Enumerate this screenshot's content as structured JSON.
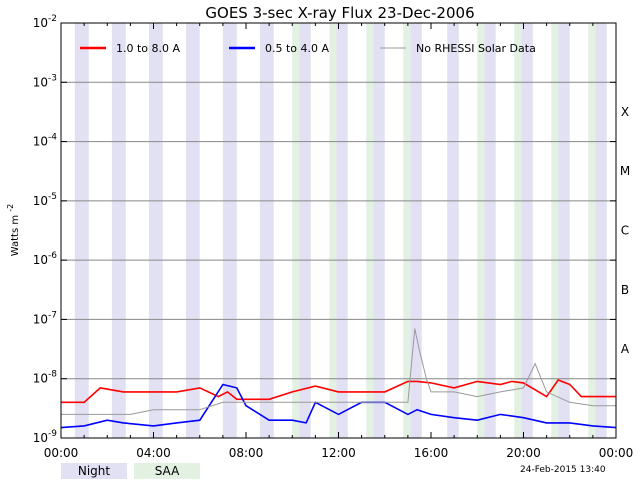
{
  "chart_data": {
    "type": "line",
    "title": "GOES 3-sec X-ray Flux   23-Dec-2006",
    "ylabel": "Watts m",
    "ylabel_superscript": "-2",
    "yscale": "log",
    "ylim": [
      1e-09,
      0.01
    ],
    "y_ticks": [
      {
        "mantissa": "10",
        "exponent": "-9",
        "value": 1e-09
      },
      {
        "mantissa": "10",
        "exponent": "-8",
        "value": 1e-08
      },
      {
        "mantissa": "10",
        "exponent": "-7",
        "value": 1e-07
      },
      {
        "mantissa": "10",
        "exponent": "-6",
        "value": 1e-06
      },
      {
        "mantissa": "10",
        "exponent": "-5",
        "value": 1e-05
      },
      {
        "mantissa": "10",
        "exponent": "-4",
        "value": 0.0001
      },
      {
        "mantissa": "10",
        "exponent": "-3",
        "value": 0.001
      },
      {
        "mantissa": "10",
        "exponent": "-2",
        "value": 0.01
      }
    ],
    "xlim": [
      "00:00",
      "24:00"
    ],
    "x_ticks": [
      {
        "label": "00:00",
        "hour": 0
      },
      {
        "label": "04:00",
        "hour": 4
      },
      {
        "label": "08:00",
        "hour": 8
      },
      {
        "label": "12:00",
        "hour": 12
      },
      {
        "label": "16:00",
        "hour": 16
      },
      {
        "label": "20:00",
        "hour": 20
      },
      {
        "label": "00:00",
        "hour": 24
      }
    ],
    "flare_classes": [
      {
        "label": "A",
        "value": 1e-08
      },
      {
        "label": "B",
        "value": 1e-07
      },
      {
        "label": "C",
        "value": 1e-06
      },
      {
        "label": "M",
        "value": 1e-05
      },
      {
        "label": "X",
        "value": 0.0001
      }
    ],
    "grid": true,
    "legend_position": "top",
    "night_bands_hours": [
      [
        0.6,
        1.2
      ],
      [
        2.2,
        2.8
      ],
      [
        3.8,
        4.4
      ],
      [
        5.4,
        6.0
      ],
      [
        7.0,
        7.6
      ],
      [
        8.6,
        9.2
      ],
      [
        10.3,
        10.8
      ],
      [
        11.9,
        12.4
      ],
      [
        13.5,
        14.0
      ],
      [
        15.1,
        15.6
      ],
      [
        16.7,
        17.2
      ],
      [
        18.3,
        18.8
      ],
      [
        19.9,
        20.4
      ],
      [
        21.5,
        22.0
      ],
      [
        23.1,
        23.6
      ]
    ],
    "saa_bands_hours": [
      [
        10.0,
        10.3
      ],
      [
        11.6,
        11.9
      ],
      [
        13.2,
        13.5
      ],
      [
        14.8,
        15.1
      ],
      [
        18.0,
        18.3
      ],
      [
        19.6,
        19.9
      ],
      [
        21.2,
        21.5
      ],
      [
        22.8,
        23.1
      ],
      [
        24.0,
        24.1
      ]
    ],
    "series": [
      {
        "name": "1.0 to 8.0 A",
        "color": "#ff0000",
        "x": [
          0,
          1,
          1.7,
          2.7,
          4.0,
          5.0,
          6.0,
          6.8,
          7.2,
          7.6,
          8.2,
          9.0,
          10.0,
          11.0,
          12.0,
          13.0,
          14.0,
          15.0,
          15.4,
          16.0,
          17.0,
          18.0,
          19.0,
          19.5,
          20.0,
          21.0,
          21.5,
          22.0,
          22.5,
          23.0,
          24.0
        ],
        "y": [
          4e-09,
          4e-09,
          7e-09,
          6e-09,
          6e-09,
          6e-09,
          7e-09,
          5e-09,
          6e-09,
          4.5e-09,
          4.5e-09,
          4.5e-09,
          6e-09,
          7.5e-09,
          6e-09,
          6e-09,
          6e-09,
          9e-09,
          9e-09,
          8.5e-09,
          7e-09,
          9e-09,
          8e-09,
          9e-09,
          8.5e-09,
          5e-09,
          9.5e-09,
          8e-09,
          5e-09,
          5e-09,
          5e-09
        ]
      },
      {
        "name": "0.5 to 4.0 A",
        "color": "#0000ff",
        "x": [
          0,
          1.0,
          2.0,
          2.7,
          4.0,
          5.0,
          6.0,
          7.0,
          7.6,
          8.0,
          9.0,
          10.0,
          10.6,
          11.0,
          12.0,
          13.0,
          14.0,
          15.0,
          15.4,
          16.0,
          17.0,
          18.0,
          19.0,
          20.0,
          21.0,
          22.0,
          23.0,
          24.0
        ],
        "y": [
          1.5e-09,
          1.6e-09,
          2e-09,
          1.8e-09,
          1.6e-09,
          1.8e-09,
          2e-09,
          8e-09,
          7e-09,
          3.5e-09,
          2e-09,
          2e-09,
          1.8e-09,
          4e-09,
          2.5e-09,
          4e-09,
          4e-09,
          2.5e-09,
          3e-09,
          2.5e-09,
          2.2e-09,
          2e-09,
          2.5e-09,
          2.2e-09,
          1.8e-09,
          1.8e-09,
          1.6e-09,
          1.5e-09
        ]
      },
      {
        "name": "No RHESSI Solar Data",
        "color": "#999999",
        "x": [
          0,
          1,
          2,
          3,
          4,
          5,
          6,
          7,
          8,
          9,
          10,
          11,
          12,
          13,
          14,
          15,
          15.3,
          15.5,
          15.8,
          16,
          17,
          18,
          19,
          20,
          20.5,
          21,
          22,
          23,
          24
        ],
        "y": [
          2.5e-09,
          2.5e-09,
          2.5e-09,
          2.5e-09,
          3e-09,
          3e-09,
          3e-09,
          4e-09,
          4e-09,
          4e-09,
          4e-09,
          4e-09,
          4e-09,
          4e-09,
          4e-09,
          4e-09,
          7e-08,
          3e-08,
          1e-08,
          6e-09,
          6e-09,
          5e-09,
          6e-09,
          7e-09,
          1.8e-08,
          6e-09,
          4e-09,
          3.5e-09,
          3.5e-09
        ]
      }
    ]
  },
  "footer": {
    "night_label": "Night",
    "saa_label": "SAA",
    "timestamp": "24-Feb-2015 13:40"
  },
  "colors": {
    "night": "#e1e1f3",
    "saa": "#e3f1e3",
    "grid": "#888888"
  }
}
